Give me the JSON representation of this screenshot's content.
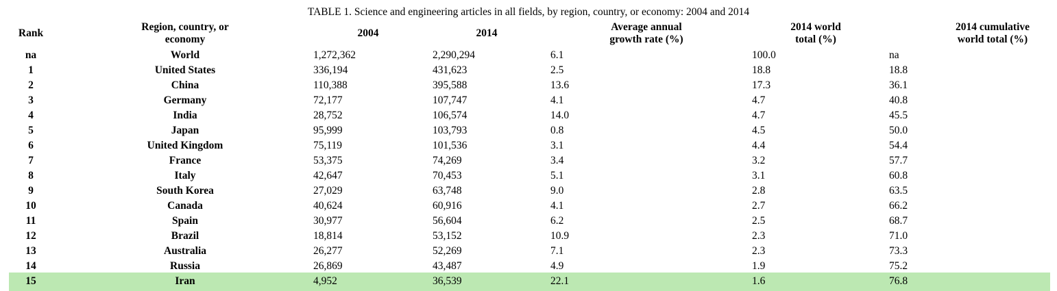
{
  "page": {
    "title": "TABLE 1. Science and engineering articles in all fields, by region, country, or economy: 2004 and 2014"
  },
  "colors": {
    "background": "#ffffff",
    "text": "#000000",
    "highlight": "#bce8b2"
  },
  "table": {
    "headers": [
      "Rank",
      "Region, country, or\neconomy",
      "2004",
      "2014",
      "Average annual\ngrowth rate (%)",
      "2014 world\ntotal (%)",
      "2014 cumulative\nworld total (%)"
    ],
    "rows": [
      {
        "rank": "na",
        "region": "World",
        "articles_2004": "1,272,362",
        "articles_2014": "2,290,294",
        "growth_rate": "6.1",
        "world_total": "100.0",
        "cumulative_world_total": "na",
        "highlighted": false
      },
      {
        "rank": "1",
        "region": "United States",
        "articles_2004": "336,194",
        "articles_2014": "431,623",
        "growth_rate": "2.5",
        "world_total": "18.8",
        "cumulative_world_total": "18.8",
        "highlighted": false
      },
      {
        "rank": "2",
        "region": "China",
        "articles_2004": "110,388",
        "articles_2014": "395,588",
        "growth_rate": "13.6",
        "world_total": "17.3",
        "cumulative_world_total": "36.1",
        "highlighted": false
      },
      {
        "rank": "3",
        "region": "Germany",
        "articles_2004": "72,177",
        "articles_2014": "107,747",
        "growth_rate": "4.1",
        "world_total": "4.7",
        "cumulative_world_total": "40.8",
        "highlighted": false
      },
      {
        "rank": "4",
        "region": "India",
        "articles_2004": "28,752",
        "articles_2014": "106,574",
        "growth_rate": "14.0",
        "world_total": "4.7",
        "cumulative_world_total": "45.5",
        "highlighted": false
      },
      {
        "rank": "5",
        "region": "Japan",
        "articles_2004": "95,999",
        "articles_2014": "103,793",
        "growth_rate": "0.8",
        "world_total": "4.5",
        "cumulative_world_total": "50.0",
        "highlighted": false
      },
      {
        "rank": "6",
        "region": "United Kingdom",
        "articles_2004": "75,119",
        "articles_2014": "101,536",
        "growth_rate": "3.1",
        "world_total": "4.4",
        "cumulative_world_total": "54.4",
        "highlighted": false
      },
      {
        "rank": "7",
        "region": "France",
        "articles_2004": "53,375",
        "articles_2014": "74,269",
        "growth_rate": "3.4",
        "world_total": "3.2",
        "cumulative_world_total": "57.7",
        "highlighted": false
      },
      {
        "rank": "8",
        "region": "Italy",
        "articles_2004": "42,647",
        "articles_2014": "70,453",
        "growth_rate": "5.1",
        "world_total": "3.1",
        "cumulative_world_total": "60.8",
        "highlighted": false
      },
      {
        "rank": "9",
        "region": "South Korea",
        "articles_2004": "27,029",
        "articles_2014": "63,748",
        "growth_rate": "9.0",
        "world_total": "2.8",
        "cumulative_world_total": "63.5",
        "highlighted": false
      },
      {
        "rank": "10",
        "region": "Canada",
        "articles_2004": "40,624",
        "articles_2014": "60,916",
        "growth_rate": "4.1",
        "world_total": "2.7",
        "cumulative_world_total": "66.2",
        "highlighted": false
      },
      {
        "rank": "11",
        "region": "Spain",
        "articles_2004": "30,977",
        "articles_2014": "56,604",
        "growth_rate": "6.2",
        "world_total": "2.5",
        "cumulative_world_total": "68.7",
        "highlighted": false
      },
      {
        "rank": "12",
        "region": "Brazil",
        "articles_2004": "18,814",
        "articles_2014": "53,152",
        "growth_rate": "10.9",
        "world_total": "2.3",
        "cumulative_world_total": "71.0",
        "highlighted": false
      },
      {
        "rank": "13",
        "region": "Australia",
        "articles_2004": "26,277",
        "articles_2014": "52,269",
        "growth_rate": "7.1",
        "world_total": "2.3",
        "cumulative_world_total": "73.3",
        "highlighted": false
      },
      {
        "rank": "14",
        "region": "Russia",
        "articles_2004": "26,869",
        "articles_2014": "43,487",
        "growth_rate": "4.9",
        "world_total": "1.9",
        "cumulative_world_total": "75.2",
        "highlighted": false
      },
      {
        "rank": "15",
        "region": "Iran",
        "articles_2004": "4,952",
        "articles_2014": "36,539",
        "growth_rate": "22.1",
        "world_total": "1.6",
        "cumulative_world_total": "76.8",
        "highlighted": true
      }
    ]
  },
  "chart_data": {
    "type": "table",
    "title": "TABLE 1. Science and engineering articles in all fields, by region, country, or economy: 2004 and 2014",
    "columns": [
      "Rank",
      "Region, country, or economy",
      "2004",
      "2014",
      "Average annual growth rate (%)",
      "2014 world total (%)",
      "2014 cumulative world total (%)"
    ],
    "rows": [
      [
        "na",
        "World",
        1272362,
        2290294,
        6.1,
        100.0,
        "na"
      ],
      [
        "1",
        "United States",
        336194,
        431623,
        2.5,
        18.8,
        18.8
      ],
      [
        "2",
        "China",
        110388,
        395588,
        13.6,
        17.3,
        36.1
      ],
      [
        "3",
        "Germany",
        72177,
        107747,
        4.1,
        4.7,
        40.8
      ],
      [
        "4",
        "India",
        28752,
        106574,
        14.0,
        4.7,
        45.5
      ],
      [
        "5",
        "Japan",
        95999,
        103793,
        0.8,
        4.5,
        50.0
      ],
      [
        "6",
        "United Kingdom",
        75119,
        101536,
        3.1,
        4.4,
        54.4
      ],
      [
        "7",
        "France",
        53375,
        74269,
        3.4,
        3.2,
        57.7
      ],
      [
        "8",
        "Italy",
        42647,
        70453,
        5.1,
        3.1,
        60.8
      ],
      [
        "9",
        "South Korea",
        27029,
        63748,
        9.0,
        2.8,
        63.5
      ],
      [
        "10",
        "Canada",
        40624,
        60916,
        4.1,
        2.7,
        66.2
      ],
      [
        "11",
        "Spain",
        30977,
        56604,
        6.2,
        2.5,
        68.7
      ],
      [
        "12",
        "Brazil",
        18814,
        53152,
        10.9,
        2.3,
        71.0
      ],
      [
        "13",
        "Australia",
        26277,
        52269,
        7.1,
        2.3,
        73.3
      ],
      [
        "14",
        "Russia",
        26869,
        43487,
        4.9,
        1.9,
        75.2
      ],
      [
        "15",
        "Iran",
        4952,
        36539,
        22.1,
        1.6,
        76.8
      ]
    ],
    "highlighted_row": "Iran",
    "highlight_color": "#bce8b2",
    "layout": {
      "header_bold": true,
      "rank_and_region_bold": true,
      "gridlines": false
    }
  }
}
